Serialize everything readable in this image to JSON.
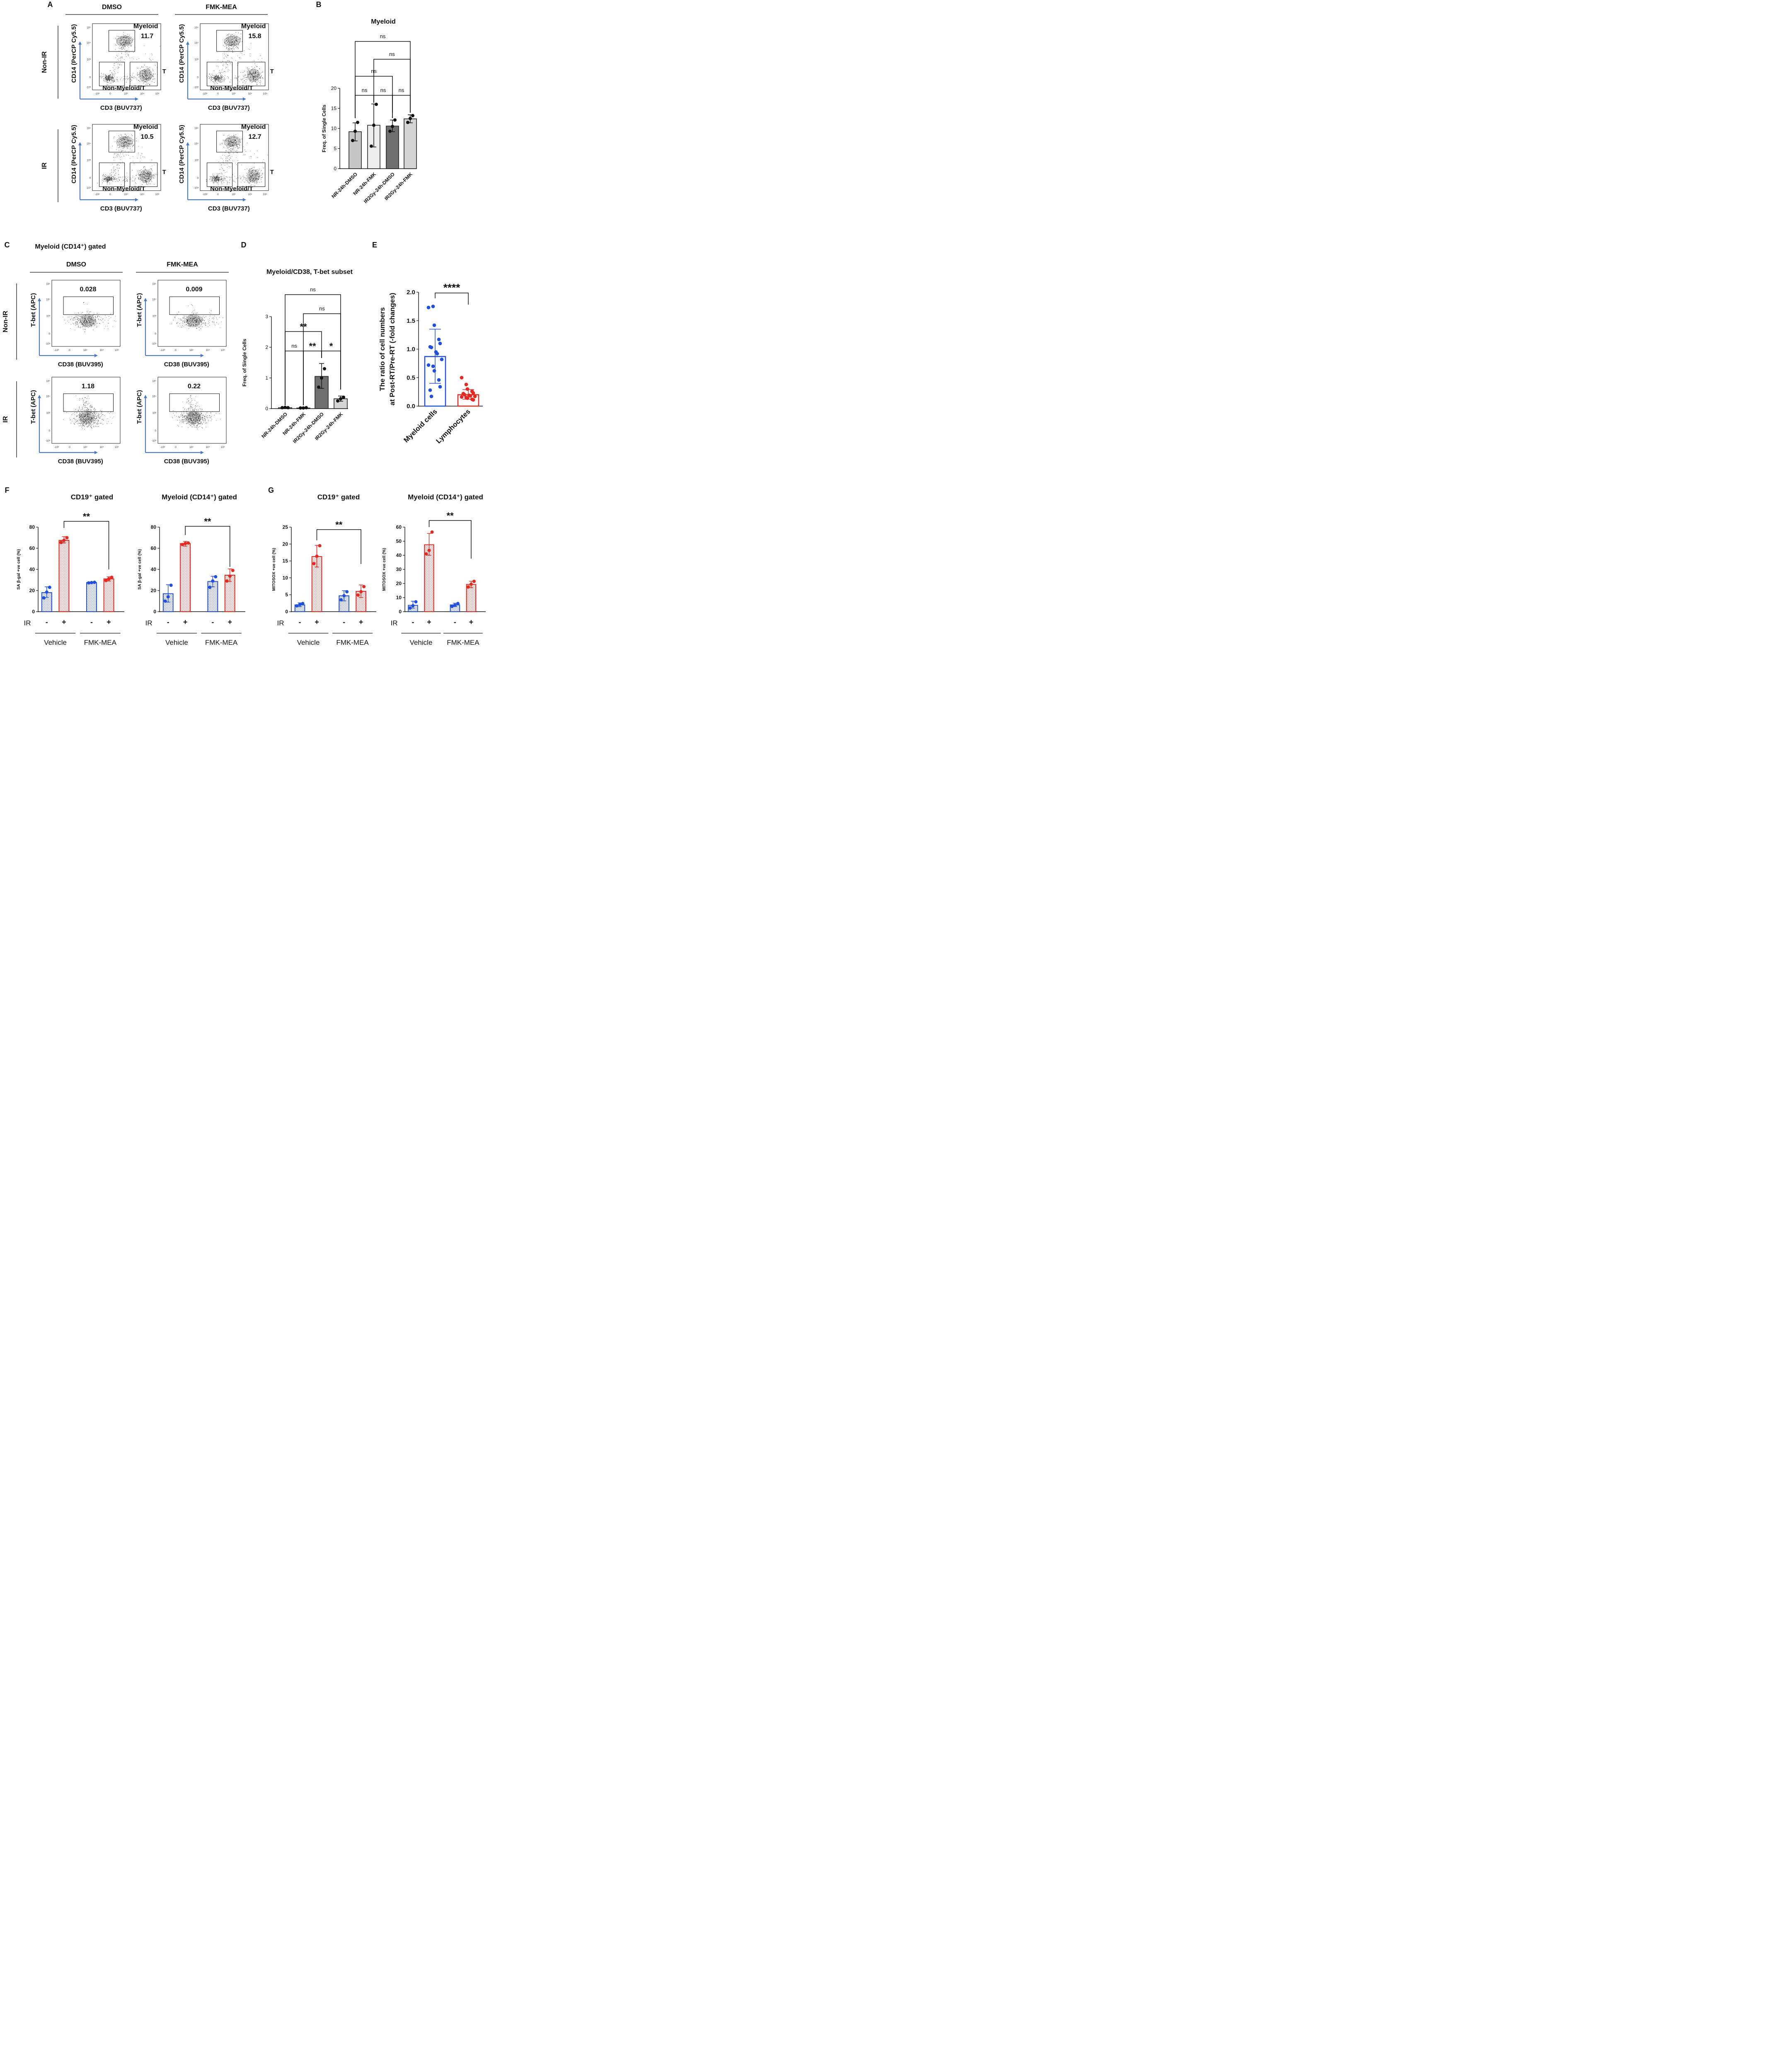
{
  "chart_data": [
    {
      "panel": "A",
      "type": "scatter",
      "subtype": "flow-cytometry-contour",
      "columns": [
        "DMSO",
        "FMK-MEA"
      ],
      "rows": [
        "Non-IR",
        "IR"
      ],
      "xlabel": "CD3 (BUV737)",
      "ylabel": "CD14 (PerCP Cy5.5)",
      "ticks_x": [
        "-10³",
        "0",
        "10³",
        "10⁴",
        "10⁵"
      ],
      "ticks_y": [
        "10⁵",
        "10⁴",
        "10³",
        "0",
        "-10³"
      ],
      "gate_labels": {
        "myeloid": "Myeloid",
        "t": "T",
        "other": "Non-Myeloid/T"
      },
      "plots": [
        {
          "row": "Non-IR",
          "col": "DMSO",
          "myeloid_value": "11.7"
        },
        {
          "row": "Non-IR",
          "col": "FMK-MEA",
          "myeloid_value": "15.8"
        },
        {
          "row": "IR",
          "col": "DMSO",
          "myeloid_value": "10.5"
        },
        {
          "row": "IR",
          "col": "FMK-MEA",
          "myeloid_value": "12.7"
        }
      ]
    },
    {
      "panel": "B",
      "type": "bar",
      "title": "Myeloid",
      "ylabel": "Freq. of Single Cells",
      "ylim": [
        0,
        20
      ],
      "yticks": [
        0,
        5,
        10,
        15,
        20
      ],
      "categories": [
        "NR-24h-DMSO",
        "NR-24h-FMK",
        "IR2Gy-24h-DMSO",
        "IR2Gy-24h-FMK"
      ],
      "values": [
        9.2,
        10.8,
        10.6,
        12.4
      ],
      "error": [
        [
          6.9,
          11.4
        ],
        [
          5.4,
          16.1
        ],
        [
          9.2,
          12.1
        ],
        [
          11.4,
          13.4
        ]
      ],
      "points": [
        [
          7.0,
          9.3,
          11.5
        ],
        [
          5.6,
          10.8,
          16.0
        ],
        [
          9.3,
          10.5,
          12.1
        ],
        [
          11.5,
          12.5,
          13.2
        ]
      ],
      "bar_colors": [
        "#c6c6c6",
        "#ececec",
        "#6f6f6f",
        "#d4d4d4"
      ],
      "significance": [
        {
          "from": 0,
          "to": 1,
          "label": "ns"
        },
        {
          "from": 1,
          "to": 2,
          "label": "ns"
        },
        {
          "from": 2,
          "to": 3,
          "label": "ns"
        },
        {
          "from": 0,
          "to": 2,
          "label": "ns"
        },
        {
          "from": 1,
          "to": 3,
          "label": "ns"
        },
        {
          "from": 0,
          "to": 3,
          "label": "ns"
        }
      ]
    },
    {
      "panel": "C",
      "type": "scatter",
      "subtype": "flow-cytometry-contour",
      "title": "Myeloid (CD14⁺) gated",
      "columns": [
        "DMSO",
        "FMK-MEA"
      ],
      "rows": [
        "Non-IR",
        "IR"
      ],
      "xlabel": "CD38 (BUV395)",
      "ylabel": "T-bet (APC)",
      "ticks_x": [
        "-10³",
        "0",
        "10³",
        "10⁴",
        "10⁵"
      ],
      "ticks_y": [
        "10⁵",
        "10⁴",
        "10³",
        "0",
        "-10³"
      ],
      "plots": [
        {
          "row": "Non-IR",
          "col": "DMSO",
          "gate_value": "0.028"
        },
        {
          "row": "Non-IR",
          "col": "FMK-MEA",
          "gate_value": "0.009"
        },
        {
          "row": "IR",
          "col": "DMSO",
          "gate_value": "1.18"
        },
        {
          "row": "IR",
          "col": "FMK-MEA",
          "gate_value": "0.22"
        }
      ]
    },
    {
      "panel": "D",
      "type": "bar",
      "title": "Myeloid/CD38, T-bet subset",
      "ylabel": "Freq. of Single Cells",
      "ylim": [
        0,
        3
      ],
      "yticks": [
        0,
        1,
        2,
        3
      ],
      "categories": [
        "NR-24h-DMSO",
        "NR-24h-FMK",
        "IR2Gy-24h-DMSO",
        "IR2Gy-24h-FMK"
      ],
      "values": [
        0.03,
        0.02,
        1.05,
        0.32
      ],
      "error": [
        [
          0.02,
          0.04
        ],
        [
          0.01,
          0.03
        ],
        [
          0.66,
          1.47
        ],
        [
          0.24,
          0.41
        ]
      ],
      "points": [
        [
          0.03,
          0.04,
          0.03
        ],
        [
          0.02,
          0.02,
          0.03
        ],
        [
          0.7,
          1.0,
          1.3
        ],
        [
          0.25,
          0.32,
          0.37
        ]
      ],
      "bar_colors": [
        "#c6c6c6",
        "#ececec",
        "#6f6f6f",
        "#d4d4d4"
      ],
      "significance": [
        {
          "from": 0,
          "to": 1,
          "label": "ns"
        },
        {
          "from": 1,
          "to": 2,
          "label": "**"
        },
        {
          "from": 2,
          "to": 3,
          "label": "*"
        },
        {
          "from": 0,
          "to": 2,
          "label": "**"
        },
        {
          "from": 1,
          "to": 3,
          "label": "ns"
        },
        {
          "from": 0,
          "to": 3,
          "label": "ns"
        }
      ]
    },
    {
      "panel": "E",
      "type": "bar",
      "ylabel": "The ratio of cell numbers at Post-RT/Pre-RT (-fold changes)",
      "ylabel_lines": [
        "The ratio of cell numbers",
        "at Post-RT/Pre-RT (-fold changes)"
      ],
      "ylim": [
        0,
        2.0
      ],
      "yticks": [
        "0.0",
        "0.5",
        "1.0",
        "1.5",
        "2.0"
      ],
      "categories": [
        "Myeloid cells",
        "Lymphocytes"
      ],
      "values": [
        0.87,
        0.2
      ],
      "error": [
        [
          0.4,
          1.35
        ],
        [
          0.12,
          0.29
        ]
      ],
      "points": [
        [
          1.73,
          1.75,
          1.42,
          1.17,
          1.1,
          1.04,
          1.03,
          0.95,
          0.92,
          0.82,
          0.72,
          0.7,
          0.62,
          0.46,
          0.34,
          0.28,
          0.17
        ],
        [
          0.5,
          0.38,
          0.3,
          0.26,
          0.23,
          0.22,
          0.2,
          0.19,
          0.18,
          0.17,
          0.16,
          0.15,
          0.14,
          0.12,
          0.11
        ]
      ],
      "colors": [
        "#1f4fe0",
        "#e8281e"
      ],
      "significance": [
        {
          "from": 0,
          "to": 1,
          "label": "****"
        }
      ]
    },
    {
      "panel": "F",
      "type": "bar",
      "title": "CD19⁺ gated",
      "ylabel": "SA β-gal +ve cell (%)",
      "ylim": [
        0,
        80
      ],
      "yticks": [
        0,
        20,
        40,
        60,
        80
      ],
      "categories": [
        "Vehicle -",
        "Vehicle +",
        "FMK-MEA -",
        "FMK-MEA +"
      ],
      "values": [
        18,
        67.5,
        27.5,
        31
      ],
      "error": [
        [
          13.5,
          23.5
        ],
        [
          65,
          71
        ],
        [
          27,
          28
        ],
        [
          29,
          33
        ]
      ],
      "points": [
        [
          13,
          18.5,
          23
        ],
        [
          65.5,
          67.5,
          70
        ],
        [
          27.2,
          27.5,
          27.8
        ],
        [
          29.5,
          31,
          32.5
        ]
      ],
      "group_labels": [
        "Vehicle",
        "FMK-MEA"
      ],
      "ir_labels": [
        "-",
        "+",
        "-",
        "+"
      ],
      "ir_title": "IR",
      "significance": [
        {
          "from": 1,
          "to": 3,
          "label": "**"
        }
      ]
    },
    {
      "panel": "F",
      "type": "bar",
      "title": "Myeloid (CD14⁺) gated",
      "ylabel": "SA β-gal +ve cell (%)",
      "ylim": [
        0,
        80
      ],
      "yticks": [
        0,
        20,
        40,
        60,
        80
      ],
      "categories": [
        "Vehicle -",
        "Vehicle +",
        "FMK-MEA -",
        "FMK-MEA +"
      ],
      "values": [
        17,
        64.5,
        28.5,
        34.5
      ],
      "error": [
        [
          9,
          25.5
        ],
        [
          62,
          66.5
        ],
        [
          23.5,
          33.5
        ],
        [
          28.5,
          40.5
        ]
      ],
      "points": [
        [
          10,
          14,
          25
        ],
        [
          63.5,
          64.5,
          65
        ],
        [
          23,
          29,
          33
        ],
        [
          29,
          33.5,
          39
        ]
      ],
      "group_labels": [
        "Vehicle",
        "FMK-MEA"
      ],
      "ir_labels": [
        "-",
        "+",
        "-",
        "+"
      ],
      "ir_title": "IR",
      "significance": [
        {
          "from": 1,
          "to": 3,
          "label": "**"
        }
      ]
    },
    {
      "panel": "G",
      "type": "bar",
      "title": "CD19⁺ gated",
      "ylabel": "MITOSOX +ve cell (%)",
      "ylim": [
        0,
        25
      ],
      "yticks": [
        0,
        5,
        10,
        15,
        20,
        25
      ],
      "categories": [
        "Vehicle -",
        "Vehicle +",
        "FMK-MEA -",
        "FMK-MEA +"
      ],
      "values": [
        2,
        16.3,
        4.7,
        6
      ],
      "error": [
        [
          1.5,
          2.6
        ],
        [
          13.2,
          19.6
        ],
        [
          3.2,
          6.2
        ],
        [
          4.2,
          7.9
        ]
      ],
      "points": [
        [
          1.7,
          2.1,
          2.4
        ],
        [
          14.2,
          16.4,
          19.5
        ],
        [
          3.5,
          4.7,
          5.9
        ],
        [
          4.9,
          5.9,
          7.4
        ]
      ],
      "group_labels": [
        "Vehicle",
        "FMK-MEA"
      ],
      "ir_labels": [
        "-",
        "+",
        "-",
        "+"
      ],
      "ir_title": "IR",
      "significance": [
        {
          "from": 1,
          "to": 3,
          "label": "**"
        }
      ]
    },
    {
      "panel": "G",
      "type": "bar",
      "title": "Myeloid (CD14⁺) gated",
      "ylabel": "MITOSOX +ve cell (%)",
      "ylim": [
        0,
        60
      ],
      "yticks": [
        0,
        10,
        20,
        30,
        40,
        50,
        60
      ],
      "categories": [
        "Vehicle -",
        "Vehicle +",
        "FMK-MEA -",
        "FMK-MEA +"
      ],
      "values": [
        4.5,
        47.5,
        4.8,
        19.3
      ],
      "error": [
        [
          2.5,
          7.4
        ],
        [
          40,
          55.5
        ],
        [
          3.6,
          6.0
        ],
        [
          17,
          21.6
        ]
      ],
      "points": [
        [
          2.6,
          4.2,
          7.0
        ],
        [
          41,
          43.5,
          56.5
        ],
        [
          3.7,
          4.6,
          5.8
        ],
        [
          17.5,
          19.5,
          21.5
        ]
      ],
      "group_labels": [
        "Vehicle",
        "FMK-MEA"
      ],
      "ir_labels": [
        "-",
        "+",
        "-",
        "+"
      ],
      "ir_title": "IR",
      "significance": [
        {
          "from": 1,
          "to": 3,
          "label": "**"
        }
      ]
    }
  ],
  "panel_letters": [
    "A",
    "B",
    "C",
    "D",
    "E",
    "F",
    "G"
  ],
  "colors": {
    "blue": "#1f4fe0",
    "red": "#e8281e",
    "arrow": "#4a78c8"
  }
}
